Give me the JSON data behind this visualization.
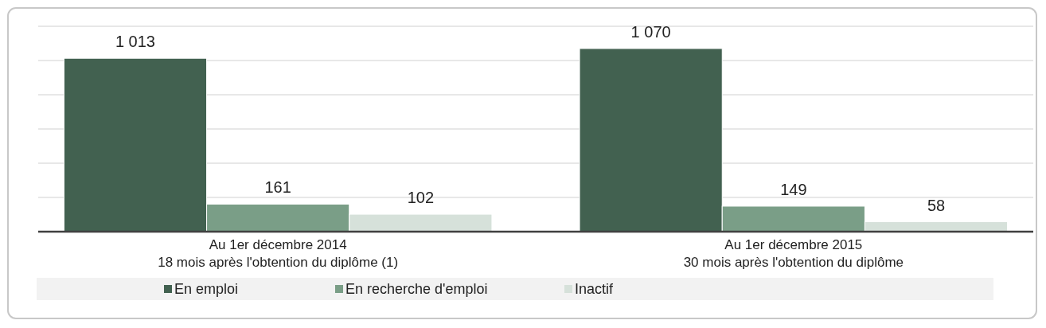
{
  "chart_data": {
    "type": "bar",
    "categories": [
      "Au 1er décembre 2014\n18 mois après l'obtention du diplôme (1)",
      "Au 1er décembre 2015\n30 mois après l'obtention du diplôme"
    ],
    "series": [
      {
        "name": "En emploi",
        "color": "#426150",
        "values": [
          1013,
          1070
        ],
        "value_labels": [
          "1 013",
          "1 070"
        ]
      },
      {
        "name": "En recherche d'emploi",
        "color": "#7a9e87",
        "values": [
          161,
          149
        ],
        "value_labels": [
          "161",
          "149"
        ]
      },
      {
        "name": "Inactif",
        "color": "#d6e1da",
        "values": [
          102,
          58
        ],
        "value_labels": [
          "102",
          "58"
        ]
      }
    ],
    "ylim": [
      0,
      1200
    ],
    "yticks": [
      {
        "value": 0,
        "label": null
      },
      {
        "value": 200,
        "label": null
      },
      {
        "value": 400,
        "label": null
      },
      {
        "value": 600,
        "label": null
      },
      {
        "value": 800,
        "label": null
      },
      {
        "value": 1000,
        "label": null
      },
      {
        "value": 1200,
        "label": null
      }
    ],
    "grid": "y",
    "tick_labels": "x",
    "legend": "bottom"
  }
}
